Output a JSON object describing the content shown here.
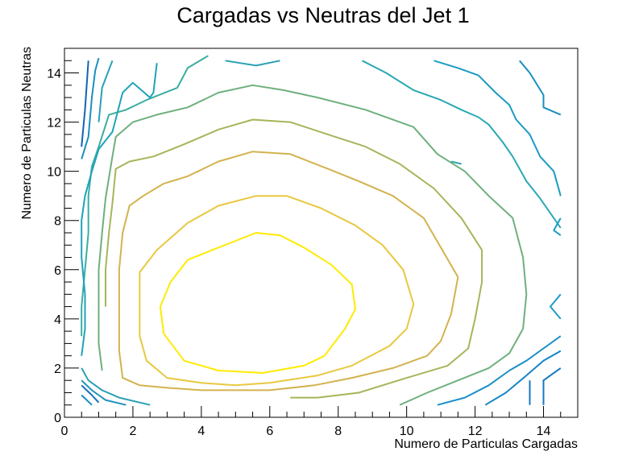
{
  "chart_data": {
    "type": "contour",
    "title": "Cargadas vs Neutras del Jet 1",
    "xlabel": "Numero de Particulas Cargadas",
    "ylabel": "Numero de Particulas Neutras",
    "xlim": [
      0,
      15
    ],
    "ylim": [
      0,
      15
    ],
    "xticks": [
      0,
      2,
      4,
      6,
      8,
      10,
      12,
      14
    ],
    "yticks": [
      0,
      2,
      4,
      6,
      8,
      10,
      12,
      14
    ],
    "grid": false,
    "legend": "none",
    "contours": [
      {
        "color": "#ffea00",
        "points": [
          [
            3.1,
            5.5
          ],
          [
            3.6,
            6.4
          ],
          [
            4.5,
            6.9
          ],
          [
            5.6,
            7.5
          ],
          [
            6.3,
            7.4
          ],
          [
            7.0,
            6.9
          ],
          [
            7.8,
            6.2
          ],
          [
            8.4,
            5.4
          ],
          [
            8.5,
            4.4
          ],
          [
            8.2,
            3.6
          ],
          [
            7.6,
            2.5
          ],
          [
            7.0,
            2.1
          ],
          [
            5.8,
            1.8
          ],
          [
            4.5,
            1.9
          ],
          [
            3.5,
            2.3
          ],
          [
            2.9,
            3.4
          ],
          [
            2.8,
            4.5
          ],
          [
            3.1,
            5.5
          ]
        ]
      },
      {
        "color": "#e8c840",
        "points": [
          [
            2.2,
            4.5
          ],
          [
            2.2,
            5.9
          ],
          [
            2.7,
            6.8
          ],
          [
            3.6,
            7.9
          ],
          [
            4.5,
            8.6
          ],
          [
            5.6,
            9.0
          ],
          [
            6.5,
            9.0
          ],
          [
            7.5,
            8.5
          ],
          [
            8.5,
            7.8
          ],
          [
            9.3,
            7.0
          ],
          [
            9.9,
            6.0
          ],
          [
            10.2,
            4.6
          ],
          [
            10.0,
            3.6
          ],
          [
            9.5,
            2.9
          ],
          [
            8.4,
            2.1
          ],
          [
            7.4,
            1.7
          ],
          [
            6.0,
            1.4
          ],
          [
            5.0,
            1.3
          ],
          [
            4.0,
            1.4
          ],
          [
            3.0,
            1.6
          ],
          [
            2.4,
            2.3
          ],
          [
            2.2,
            3.3
          ],
          [
            2.2,
            4.5
          ]
        ]
      },
      {
        "color": "#d3b24e",
        "points": [
          [
            1.6,
            4.5
          ],
          [
            1.6,
            6.0
          ],
          [
            1.7,
            7.5
          ],
          [
            1.9,
            8.6
          ],
          [
            2.3,
            9.0
          ],
          [
            2.9,
            9.5
          ],
          [
            3.6,
            9.8
          ],
          [
            4.5,
            10.4
          ],
          [
            5.5,
            10.8
          ],
          [
            6.6,
            10.7
          ],
          [
            7.7,
            10.1
          ],
          [
            8.6,
            9.6
          ],
          [
            9.6,
            9.0
          ],
          [
            10.5,
            8.1
          ],
          [
            11.0,
            6.9
          ],
          [
            11.5,
            5.7
          ],
          [
            11.3,
            4.2
          ],
          [
            11.0,
            3.1
          ],
          [
            10.6,
            2.5
          ],
          [
            9.6,
            2.0
          ],
          [
            8.4,
            1.6
          ],
          [
            7.3,
            1.3
          ],
          [
            6.0,
            1.1
          ],
          [
            5.0,
            1.1
          ],
          [
            4.0,
            1.1
          ],
          [
            3.0,
            1.2
          ],
          [
            2.2,
            1.3
          ],
          [
            1.7,
            1.6
          ],
          [
            1.6,
            2.7
          ],
          [
            1.6,
            4.5
          ]
        ]
      },
      {
        "color": "#a6b55a",
        "points": [
          [
            1.2,
            4.5
          ],
          [
            1.2,
            6.0
          ],
          [
            1.3,
            7.5
          ],
          [
            1.4,
            8.7
          ],
          [
            1.5,
            10.1
          ],
          [
            1.9,
            10.4
          ],
          [
            2.6,
            10.6
          ],
          [
            3.5,
            11.1
          ],
          [
            4.5,
            11.7
          ],
          [
            5.5,
            12.1
          ],
          [
            6.6,
            12.0
          ],
          [
            7.7,
            11.5
          ],
          [
            8.8,
            11.0
          ],
          [
            9.8,
            10.3
          ],
          [
            10.8,
            9.3
          ],
          [
            11.6,
            8.1
          ],
          [
            12.2,
            6.8
          ],
          [
            12.2,
            5.5
          ],
          [
            12.0,
            4.0
          ],
          [
            11.8,
            2.8
          ],
          [
            11.2,
            2.1
          ],
          [
            10.0,
            1.6
          ],
          [
            8.6,
            1.0
          ],
          [
            7.4,
            0.8
          ],
          [
            6.6,
            0.8
          ]
        ]
      },
      {
        "color": "#6eb07d",
        "points": [
          [
            1.1,
            1.9
          ],
          [
            1.0,
            3.0
          ],
          [
            1.0,
            4.5
          ],
          [
            1.0,
            6.0
          ],
          [
            1.1,
            7.5
          ],
          [
            1.2,
            8.9
          ],
          [
            1.4,
            10.6
          ],
          [
            1.5,
            11.4
          ],
          [
            2.0,
            12.0
          ],
          [
            2.7,
            12.3
          ],
          [
            3.6,
            12.6
          ],
          [
            4.5,
            13.2
          ],
          [
            5.5,
            13.5
          ],
          [
            6.4,
            13.3
          ],
          [
            7.4,
            13.0
          ],
          [
            8.8,
            12.5
          ],
          [
            10.2,
            11.8
          ],
          [
            10.9,
            10.7
          ],
          [
            11.7,
            10.0
          ],
          [
            12.4,
            9.0
          ],
          [
            13.1,
            8.1
          ],
          [
            13.4,
            6.5
          ],
          [
            13.5,
            5.0
          ],
          [
            13.4,
            3.6
          ],
          [
            13.0,
            2.6
          ],
          [
            12.4,
            2.0
          ],
          [
            11.5,
            1.5
          ],
          [
            10.6,
            1.0
          ],
          [
            9.8,
            0.5
          ]
        ]
      },
      {
        "color": "#3aaea0",
        "points": [
          [
            0.5,
            3.3
          ],
          [
            0.5,
            4.5
          ],
          [
            0.6,
            6.0
          ],
          [
            0.7,
            7.5
          ],
          [
            0.7,
            9.0
          ],
          [
            0.8,
            10.2
          ],
          [
            1.0,
            11.0
          ],
          [
            1.3,
            12.3
          ],
          [
            1.8,
            12.5
          ],
          [
            2.4,
            12.9
          ],
          [
            3.3,
            13.4
          ],
          [
            3.6,
            14.2
          ],
          [
            4.2,
            14.7
          ]
        ]
      },
      {
        "color": "#1fa3b8",
        "points": [
          [
            0.5,
            2.5
          ],
          [
            0.6,
            3.6
          ],
          [
            0.6,
            5.0
          ],
          [
            0.5,
            6.5
          ],
          [
            0.5,
            8.0
          ],
          [
            0.6,
            9.0
          ],
          [
            0.8,
            10.0
          ],
          [
            1.0,
            10.9
          ],
          [
            1.4,
            11.6
          ],
          [
            1.7,
            13.2
          ],
          [
            2.0,
            13.6
          ],
          [
            2.5,
            13.0
          ],
          [
            2.6,
            13.2
          ],
          [
            2.7,
            14.4
          ]
        ]
      },
      {
        "color": "#2aa0b4",
        "points": [
          [
            4.7,
            14.5
          ],
          [
            5.6,
            14.3
          ],
          [
            6.3,
            14.5
          ]
        ]
      },
      {
        "color": "#29a8b6",
        "points": [
          [
            8.7,
            14.5
          ],
          [
            9.4,
            14.0
          ],
          [
            10.2,
            13.3
          ],
          [
            11.0,
            12.9
          ],
          [
            11.6,
            12.5
          ],
          [
            12.1,
            12.2
          ],
          [
            12.4,
            11.9
          ],
          [
            12.8,
            11.2
          ],
          [
            13.1,
            10.6
          ],
          [
            13.5,
            9.6
          ],
          [
            13.9,
            8.9
          ],
          [
            14.2,
            8.3
          ],
          [
            14.5,
            7.7
          ]
        ]
      },
      {
        "color": "#1c9cc2",
        "points": [
          [
            10.8,
            14.5
          ],
          [
            11.5,
            14.2
          ],
          [
            12.1,
            13.9
          ],
          [
            12.6,
            13.2
          ],
          [
            13.0,
            12.7
          ],
          [
            13.2,
            12.1
          ],
          [
            13.6,
            11.5
          ],
          [
            13.9,
            10.6
          ],
          [
            14.3,
            10.0
          ],
          [
            14.5,
            9.0
          ]
        ]
      },
      {
        "color": "#178fc2",
        "points": [
          [
            13.3,
            14.5
          ],
          [
            13.6,
            14.0
          ],
          [
            14.0,
            13.1
          ],
          [
            14.0,
            12.6
          ],
          [
            14.5,
            12.3
          ]
        ]
      },
      {
        "color": "#1b9cc4",
        "points": [
          [
            14.5,
            8.1
          ],
          [
            14.3,
            7.6
          ],
          [
            14.5,
            7.4
          ]
        ]
      },
      {
        "color": "#1e9cc6",
        "points": [
          [
            14.5,
            5.0
          ],
          [
            14.2,
            4.5
          ],
          [
            14.5,
            4.0
          ]
        ]
      },
      {
        "color": "#1a8fc8",
        "points": [
          [
            14.5,
            3.3
          ],
          [
            14.0,
            2.8
          ],
          [
            13.5,
            2.3
          ],
          [
            13.0,
            1.9
          ],
          [
            12.4,
            1.3
          ],
          [
            11.7,
            0.8
          ],
          [
            10.9,
            0.5
          ]
        ]
      },
      {
        "color": "#1585c8",
        "points": [
          [
            14.5,
            2.7
          ],
          [
            14.0,
            2.3
          ],
          [
            13.5,
            1.7
          ],
          [
            12.9,
            1.0
          ],
          [
            12.3,
            0.5
          ]
        ]
      },
      {
        "color": "#1478c6",
        "points": [
          [
            14.5,
            2.0
          ],
          [
            14.0,
            1.5
          ],
          [
            14.0,
            0.5
          ]
        ]
      },
      {
        "color": "#1478c6",
        "points": [
          [
            13.6,
            1.5
          ],
          [
            13.6,
            0.5
          ]
        ]
      },
      {
        "color": "#2aa0b4",
        "points": [
          [
            0.5,
            2.0
          ],
          [
            0.7,
            1.5
          ],
          [
            1.1,
            1.1
          ],
          [
            1.6,
            0.8
          ],
          [
            2.5,
            0.5
          ]
        ]
      },
      {
        "color": "#1f92bc",
        "points": [
          [
            0.5,
            1.5
          ],
          [
            0.8,
            1.1
          ],
          [
            1.2,
            0.7
          ],
          [
            1.8,
            0.5
          ]
        ]
      },
      {
        "color": "#1770b8",
        "points": [
          [
            0.5,
            1.3
          ],
          [
            0.8,
            0.9
          ],
          [
            1.0,
            0.6
          ]
        ]
      },
      {
        "color": "#1a8cc0",
        "points": [
          [
            0.5,
            0.9
          ],
          [
            0.8,
            0.5
          ]
        ]
      },
      {
        "color": "#1a8fc0",
        "points": [
          [
            0.5,
            10.5
          ],
          [
            0.7,
            11.4
          ],
          [
            0.8,
            13.0
          ],
          [
            0.9,
            14.1
          ],
          [
            1.0,
            14.6
          ]
        ]
      },
      {
        "color": "#1164b4",
        "points": [
          [
            0.5,
            11.0
          ],
          [
            0.6,
            12.5
          ],
          [
            0.7,
            14.5
          ]
        ]
      },
      {
        "color": "#2a9fb8",
        "points": [
          [
            1.0,
            12.0
          ],
          [
            1.1,
            13.4
          ],
          [
            1.4,
            14.5
          ]
        ]
      },
      {
        "color": "#33a3b0",
        "points": [
          [
            11.3,
            10.4
          ],
          [
            11.6,
            10.3
          ]
        ]
      }
    ]
  }
}
